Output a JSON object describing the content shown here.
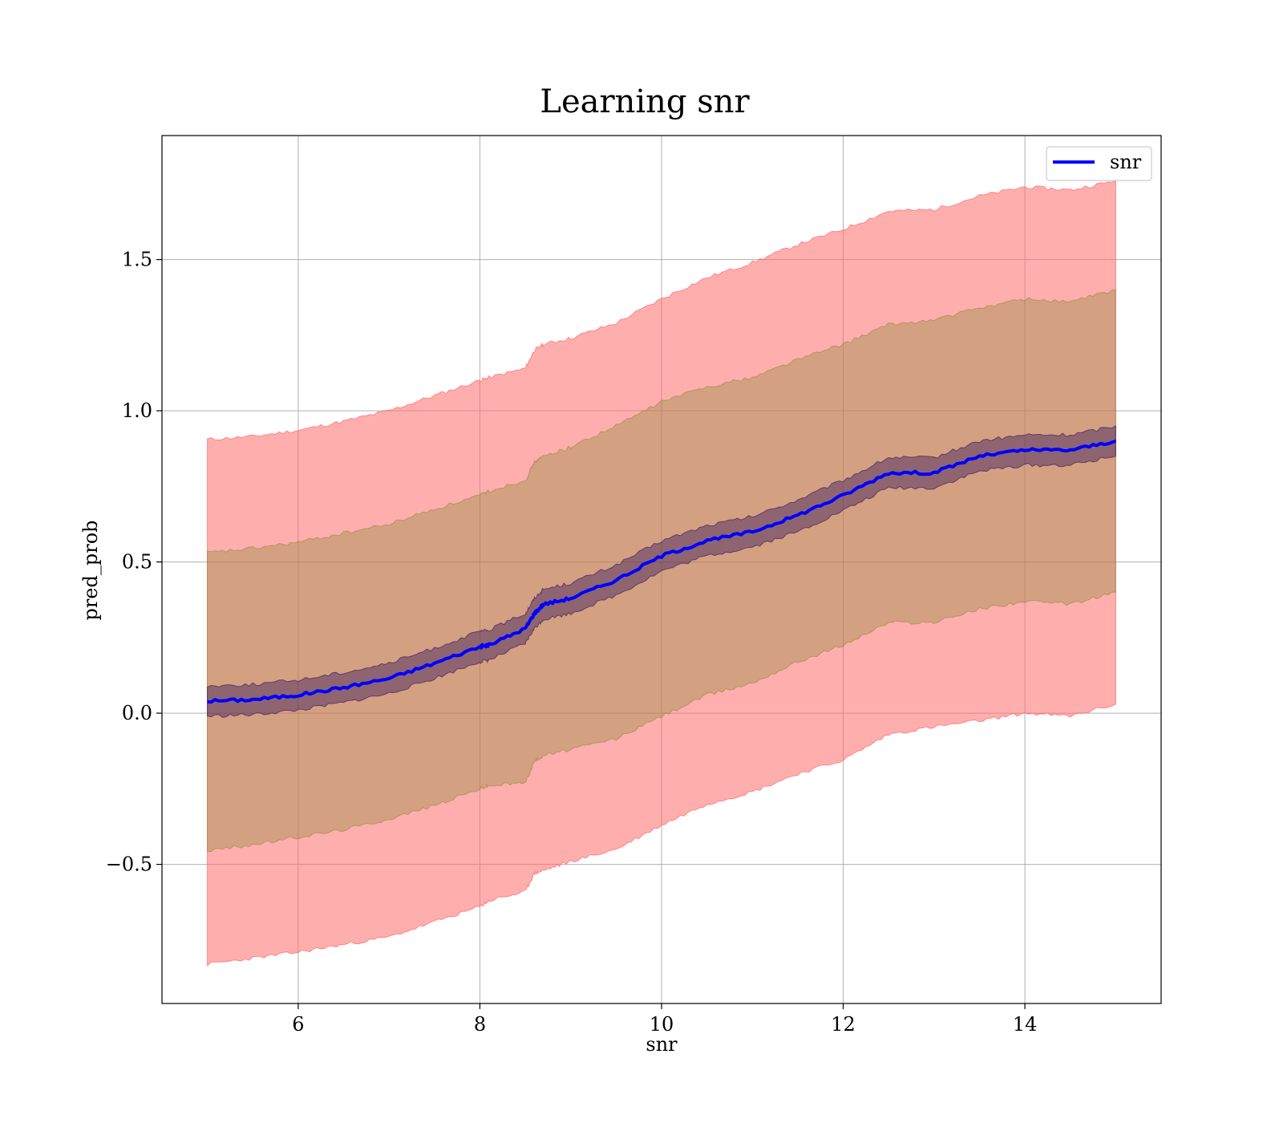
{
  "chart_data": {
    "type": "line",
    "title": "Learning snr",
    "xlabel": "snr",
    "ylabel": "pred_prob",
    "xlim": [
      4.5,
      15.5
    ],
    "ylim": [
      -0.96,
      1.91
    ],
    "xticks": [
      6,
      8,
      10,
      12,
      14
    ],
    "xtick_labels": [
      "6",
      "8",
      "10",
      "12",
      "14"
    ],
    "yticks": [
      -0.5,
      0.0,
      0.5,
      1.0,
      1.5
    ],
    "ytick_labels": [
      "−0.5",
      "0.0",
      "0.5",
      "1.0",
      "1.5"
    ],
    "grid": true,
    "legend": {
      "position": "top-right",
      "entries": [
        "snr"
      ]
    },
    "x": [
      5.0,
      5.5,
      6.0,
      6.5,
      7.0,
      7.5,
      8.0,
      8.1,
      8.5,
      8.6,
      8.7,
      9.0,
      9.5,
      10.0,
      10.5,
      11.0,
      11.5,
      12.0,
      12.5,
      13.0,
      13.5,
      14.0,
      14.5,
      15.0
    ],
    "series": [
      {
        "name": "snr",
        "color": "#0000ff",
        "values": [
          0.04,
          0.045,
          0.06,
          0.085,
          0.115,
          0.165,
          0.22,
          0.225,
          0.28,
          0.33,
          0.36,
          0.38,
          0.44,
          0.52,
          0.57,
          0.6,
          0.655,
          0.72,
          0.795,
          0.795,
          0.85,
          0.87,
          0.87,
          0.9
        ]
      }
    ],
    "bands": [
      {
        "color": "#ff6b6b",
        "opacity": 0.55,
        "lower": [
          -0.83,
          -0.81,
          -0.79,
          -0.765,
          -0.74,
          -0.69,
          -0.64,
          -0.62,
          -0.59,
          -0.53,
          -0.52,
          -0.49,
          -0.45,
          -0.37,
          -0.3,
          -0.26,
          -0.2,
          -0.155,
          -0.07,
          -0.045,
          -0.025,
          0.0,
          -0.01,
          0.03
        ],
        "upper": [
          0.905,
          0.915,
          0.935,
          0.965,
          1.0,
          1.05,
          1.1,
          1.11,
          1.14,
          1.2,
          1.22,
          1.24,
          1.29,
          1.37,
          1.44,
          1.49,
          1.55,
          1.6,
          1.66,
          1.665,
          1.71,
          1.74,
          1.73,
          1.76
        ]
      },
      {
        "color": "#8f8a3a",
        "opacity": 0.38,
        "lower": [
          -0.455,
          -0.435,
          -0.41,
          -0.385,
          -0.35,
          -0.305,
          -0.25,
          -0.24,
          -0.23,
          -0.16,
          -0.14,
          -0.12,
          -0.085,
          -0.01,
          0.06,
          0.1,
          0.17,
          0.225,
          0.3,
          0.3,
          0.345,
          0.37,
          0.36,
          0.4
        ],
        "upper": [
          0.53,
          0.545,
          0.565,
          0.595,
          0.625,
          0.675,
          0.72,
          0.735,
          0.77,
          0.83,
          0.85,
          0.88,
          0.95,
          1.03,
          1.08,
          1.11,
          1.17,
          1.22,
          1.285,
          1.3,
          1.34,
          1.37,
          1.36,
          1.4
        ]
      },
      {
        "color": "#3a1a5a",
        "opacity": 0.45,
        "lower": [
          -0.01,
          -0.005,
          0.01,
          0.035,
          0.065,
          0.115,
          0.17,
          0.175,
          0.23,
          0.28,
          0.31,
          0.33,
          0.39,
          0.47,
          0.52,
          0.55,
          0.6,
          0.67,
          0.745,
          0.745,
          0.8,
          0.82,
          0.82,
          0.85
        ],
        "upper": [
          0.09,
          0.095,
          0.11,
          0.135,
          0.165,
          0.215,
          0.27,
          0.275,
          0.33,
          0.38,
          0.41,
          0.43,
          0.49,
          0.57,
          0.62,
          0.65,
          0.705,
          0.77,
          0.845,
          0.845,
          0.9,
          0.92,
          0.92,
          0.95
        ]
      }
    ]
  }
}
